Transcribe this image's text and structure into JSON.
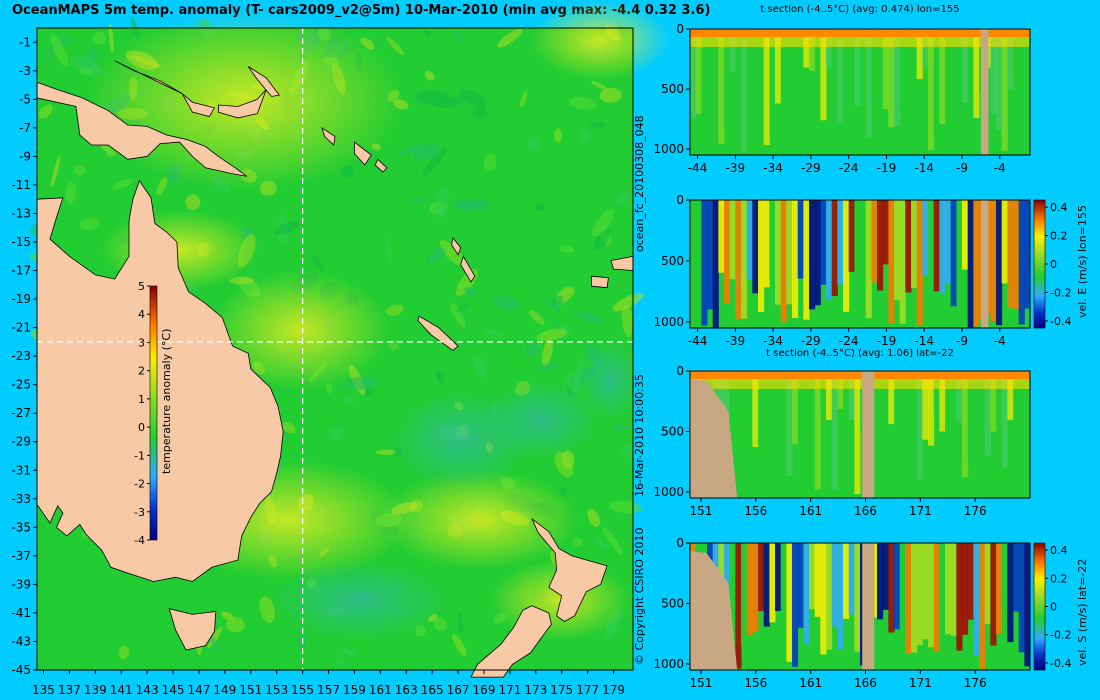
{
  "title": "OceanMAPS 5m temp. anomaly (T- cars2009_v2@5m) 10-Mar-2010 (min avg max: -4.4 0.32 3.6)",
  "map": {
    "lat_ticks": [
      "-1",
      "-3",
      "-5",
      "-7",
      "-9",
      "-11",
      "-13",
      "-15",
      "-17",
      "-19",
      "-21",
      "-23",
      "-25",
      "-27",
      "-29",
      "-31",
      "-33",
      "-35",
      "-37",
      "-39",
      "-41",
      "-43",
      "-45"
    ],
    "lon_ticks": [
      "135",
      "137",
      "139",
      "141",
      "143",
      "145",
      "147",
      "149",
      "151",
      "153",
      "155",
      "157",
      "159",
      "161",
      "163",
      "165",
      "167",
      "169",
      "171",
      "173",
      "175",
      "177",
      "179"
    ],
    "colorbar_label": "temperature anomaly (°C)",
    "colorbar_ticks": [
      "5",
      "4",
      "3",
      "2",
      "1",
      "0",
      "-1",
      "-2",
      "-3",
      "-4"
    ],
    "section_lon": 155,
    "section_lat": -22,
    "colors": {
      "land": "#f7c9a4",
      "ocean": "#22cc33",
      "coastline": "#000000",
      "crosshair": "#ffffff"
    }
  },
  "side_text": {
    "left_vertical": "ocean_fc_20100308_048",
    "left_vertical2": "16-Mar-2010 10:00:35",
    "copyright": "© Copyright CSIRO 2010"
  },
  "chart_data": [
    {
      "type": "heatmap",
      "title": "t section (-4..5°C) (avg: 0.474) lon=155",
      "x_ticks": [
        "-44",
        "-39",
        "-34",
        "-29",
        "-24",
        "-19",
        "-14",
        "-9",
        "-4"
      ],
      "y_ticks": [
        "0",
        "500",
        "1000"
      ],
      "xlim": [
        -45,
        0
      ],
      "ylim": [
        1050,
        0
      ],
      "colorbar_label": "",
      "colorbar_ticks": []
    },
    {
      "type": "heatmap",
      "title": "",
      "x_ticks": [
        "-44",
        "-39",
        "-34",
        "-29",
        "-24",
        "-19",
        "-14",
        "-9",
        "-4"
      ],
      "y_ticks": [
        "0",
        "500",
        "1000"
      ],
      "xlim": [
        -45,
        0
      ],
      "ylim": [
        1050,
        0
      ],
      "colorbar_label": "vel. E (m/s) lon=155",
      "colorbar_ticks": [
        "0.4",
        "0.2",
        "0",
        "-0.2",
        "-0.4"
      ]
    },
    {
      "type": "heatmap",
      "title": "t section (-4..5°C) (avg: 1.06) lat=-22",
      "x_ticks": [
        "151",
        "156",
        "161",
        "166",
        "171",
        "176"
      ],
      "y_ticks": [
        "0",
        "500",
        "1000"
      ],
      "xlim": [
        150,
        181
      ],
      "ylim": [
        1050,
        0
      ],
      "colorbar_label": "",
      "colorbar_ticks": []
    },
    {
      "type": "heatmap",
      "title": "",
      "x_ticks": [
        "151",
        "156",
        "161",
        "166",
        "171",
        "176"
      ],
      "y_ticks": [
        "0",
        "500",
        "1000"
      ],
      "xlim": [
        150,
        181
      ],
      "ylim": [
        1050,
        0
      ],
      "colorbar_label": "vel. S (m/s) lat=-22",
      "colorbar_ticks": [
        "0.4",
        "0.2",
        "0",
        "-0.2",
        "-0.4"
      ]
    }
  ]
}
